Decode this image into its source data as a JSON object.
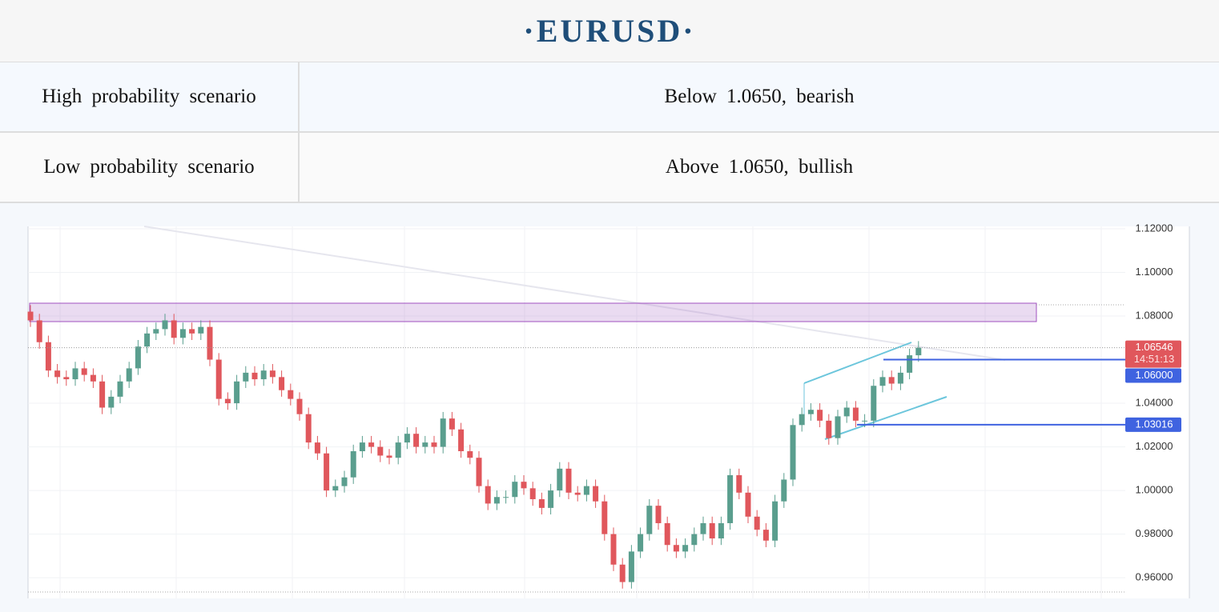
{
  "header": {
    "title": "·EURUSD·"
  },
  "table": {
    "rows": [
      [
        "High probability scenario",
        "Below 1.0650, bearish"
      ],
      [
        "Low probability scenario",
        "Above 1.0650, bullish"
      ]
    ]
  },
  "chart_data": {
    "type": "candlestick",
    "open": [
      1.082,
      1.078,
      1.068,
      1.055,
      1.052,
      1.051,
      1.056,
      1.053,
      1.05,
      1.038,
      1.043,
      1.05,
      1.056,
      1.066,
      1.072,
      1.074,
      1.078,
      1.07,
      1.074,
      1.072,
      1.075,
      1.06,
      1.042,
      1.04,
      1.05,
      1.054,
      1.051,
      1.055,
      1.052,
      1.046,
      1.042,
      1.035,
      1.022,
      1.017,
      1.0,
      1.002,
      1.006,
      1.018,
      1.022,
      1.02,
      1.016,
      1.015,
      1.022,
      1.026,
      1.02,
      1.022,
      1.02,
      1.033,
      1.028,
      1.018,
      1.015,
      1.002,
      0.994,
      0.997,
      0.997,
      1.004,
      1.001,
      0.996,
      0.992,
      1.0,
      1.01,
      0.999,
      0.998,
      1.002,
      0.995,
      0.98,
      0.966,
      0.958,
      0.972,
      0.98,
      0.993,
      0.985,
      0.975,
      0.972,
      0.975,
      0.98,
      0.985,
      0.978,
      0.985,
      1.007,
      0.999,
      0.988,
      0.982,
      0.977,
      0.995,
      1.005,
      1.03,
      1.035,
      1.037,
      1.032,
      1.024,
      1.034,
      1.038,
      1.032,
      1.032,
      1.048,
      1.052,
      1.049,
      1.054,
      1.062
    ],
    "high": [
      1.085,
      1.081,
      1.071,
      1.058,
      1.055,
      1.059,
      1.059,
      1.056,
      1.053,
      1.046,
      1.053,
      1.059,
      1.069,
      1.075,
      1.077,
      1.081,
      1.081,
      1.077,
      1.077,
      1.078,
      1.078,
      1.063,
      1.045,
      1.053,
      1.057,
      1.057,
      1.058,
      1.058,
      1.055,
      1.049,
      1.045,
      1.038,
      1.025,
      1.02,
      1.005,
      1.009,
      1.021,
      1.025,
      1.025,
      1.023,
      1.019,
      1.025,
      1.029,
      1.029,
      1.025,
      1.025,
      1.036,
      1.036,
      1.031,
      1.021,
      1.018,
      1.005,
      1.0,
      1.0,
      1.007,
      1.007,
      1.004,
      0.999,
      1.003,
      1.013,
      1.013,
      1.002,
      1.005,
      1.005,
      0.998,
      0.983,
      0.969,
      0.975,
      0.983,
      0.996,
      0.996,
      0.988,
      0.978,
      0.978,
      0.983,
      0.988,
      0.988,
      0.988,
      1.01,
      1.01,
      1.002,
      0.991,
      0.985,
      0.998,
      1.008,
      1.033,
      1.038,
      1.04,
      1.04,
      1.035,
      1.037,
      1.041,
      1.041,
      1.035,
      1.051,
      1.055,
      1.055,
      1.057,
      1.065,
      1.0685
    ],
    "low": [
      1.075,
      1.065,
      1.052,
      1.049,
      1.048,
      1.048,
      1.05,
      1.047,
      1.035,
      1.035,
      1.04,
      1.047,
      1.053,
      1.063,
      1.069,
      1.071,
      1.067,
      1.067,
      1.069,
      1.069,
      1.057,
      1.039,
      1.037,
      1.037,
      1.047,
      1.048,
      1.048,
      1.049,
      1.043,
      1.039,
      1.032,
      1.019,
      1.014,
      0.997,
      0.997,
      0.999,
      1.003,
      1.015,
      1.017,
      1.013,
      1.012,
      1.012,
      1.019,
      1.017,
      1.017,
      1.017,
      1.017,
      1.025,
      1.015,
      1.012,
      0.999,
      0.991,
      0.991,
      0.994,
      0.994,
      0.998,
      0.993,
      0.989,
      0.989,
      0.997,
      0.996,
      0.995,
      0.995,
      0.992,
      0.977,
      0.963,
      0.955,
      0.955,
      0.969,
      0.977,
      0.982,
      0.972,
      0.969,
      0.969,
      0.972,
      0.977,
      0.975,
      0.975,
      0.982,
      0.996,
      0.985,
      0.979,
      0.974,
      0.974,
      0.992,
      1.002,
      1.027,
      1.032,
      1.029,
      1.021,
      1.021,
      1.031,
      1.029,
      1.029,
      1.029,
      1.045,
      1.046,
      1.046,
      1.051,
      1.059
    ],
    "close": [
      1.078,
      1.068,
      1.055,
      1.052,
      1.051,
      1.056,
      1.053,
      1.05,
      1.038,
      1.043,
      1.05,
      1.056,
      1.066,
      1.072,
      1.074,
      1.078,
      1.07,
      1.074,
      1.072,
      1.075,
      1.06,
      1.042,
      1.04,
      1.05,
      1.054,
      1.051,
      1.055,
      1.052,
      1.046,
      1.042,
      1.035,
      1.022,
      1.017,
      1.0,
      1.002,
      1.006,
      1.018,
      1.022,
      1.02,
      1.016,
      1.015,
      1.022,
      1.026,
      1.02,
      1.022,
      1.02,
      1.033,
      1.028,
      1.018,
      1.015,
      1.002,
      0.994,
      0.997,
      0.997,
      1.004,
      1.001,
      0.996,
      0.992,
      1.0,
      1.01,
      0.999,
      0.998,
      1.002,
      0.995,
      0.98,
      0.966,
      0.958,
      0.972,
      0.98,
      0.993,
      0.985,
      0.975,
      0.972,
      0.975,
      0.98,
      0.985,
      0.978,
      0.985,
      1.007,
      0.999,
      0.988,
      0.982,
      0.977,
      0.995,
      1.005,
      1.03,
      1.035,
      1.037,
      1.032,
      1.024,
      1.034,
      1.038,
      1.032,
      1.032,
      1.048,
      1.052,
      1.049,
      1.054,
      1.062,
      1.06546
    ],
    "ylim": [
      0.9505,
      1.1222
    ],
    "yticks": [
      {
        "value": 0.96,
        "label": "0.96000"
      },
      {
        "value": 0.98,
        "label": "0.98000"
      },
      {
        "value": 1.0,
        "label": "1.00000"
      },
      {
        "value": 1.02,
        "label": "1.02000"
      },
      {
        "value": 1.04,
        "label": "1.04000"
      },
      {
        "value": 1.08,
        "label": "1.08000"
      },
      {
        "value": 1.1,
        "label": "1.10000"
      },
      {
        "value": 1.12,
        "label": "1.12000"
      }
    ],
    "grid": true,
    "up_color": "#5a9e8e",
    "down_color": "#e0575c",
    "last_price": 1.06546,
    "countdown": "14:51:13",
    "levels": [
      {
        "value": 1.06,
        "label": "1.06000"
      },
      1.03016
    ],
    "level_color": "#3f63e0"
  }
}
